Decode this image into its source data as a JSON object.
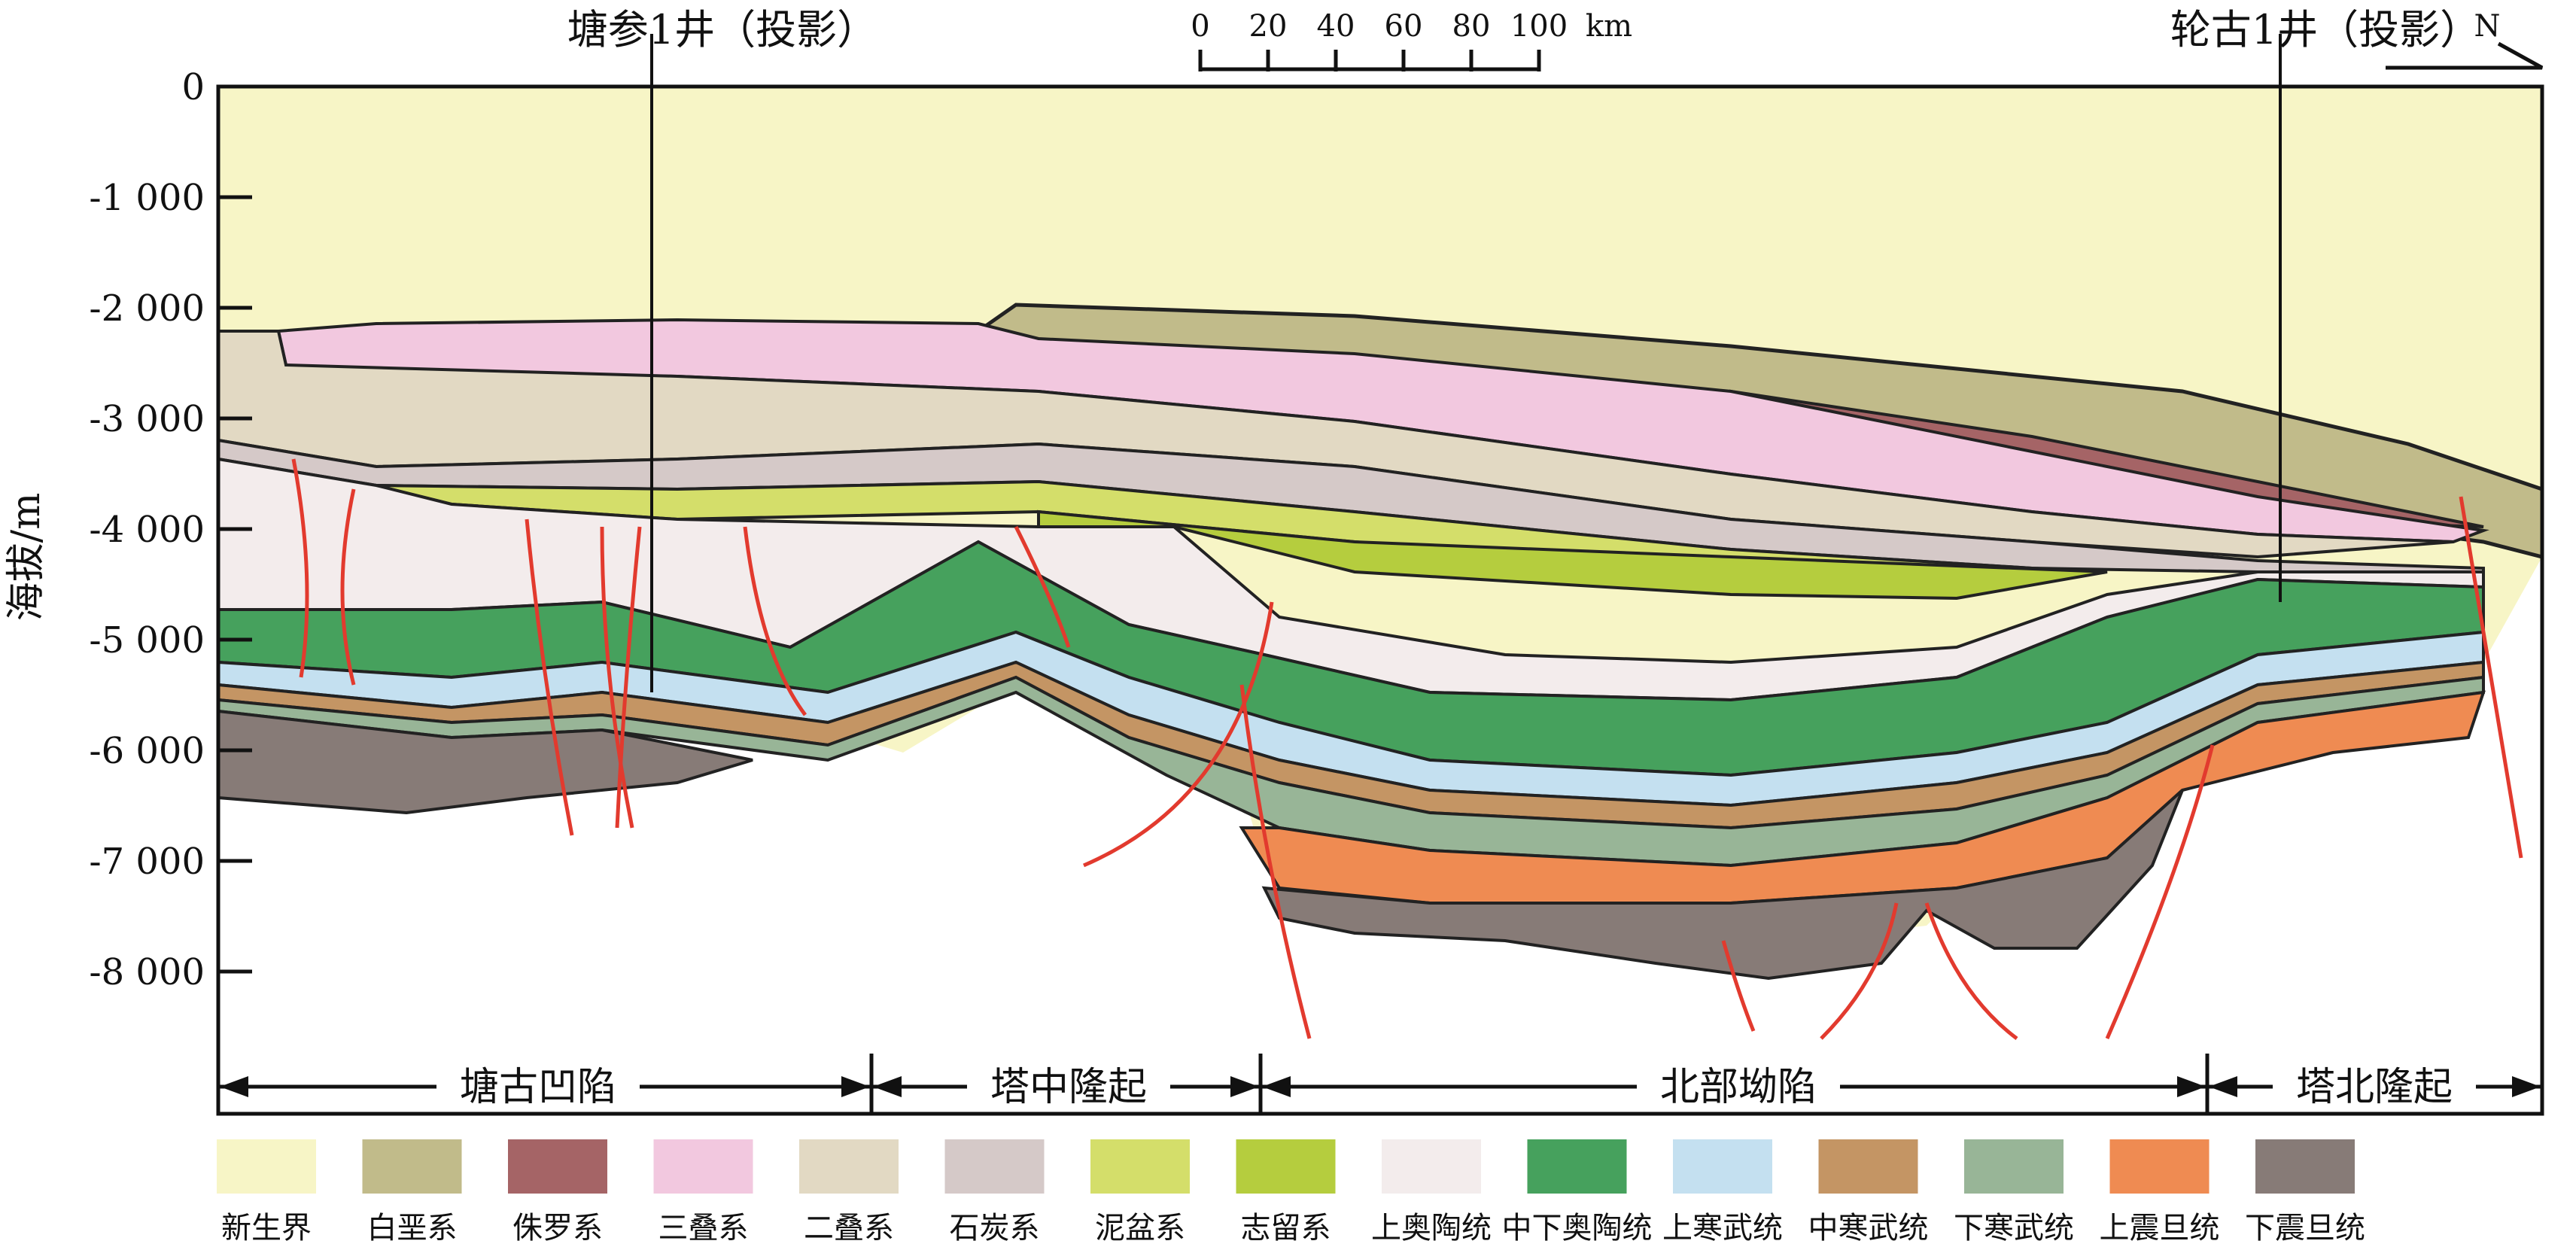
{
  "wells": [
    {
      "name": "塘参1井（投影）"
    },
    {
      "name": "轮古1井（投影）"
    }
  ],
  "north_label": "N",
  "scale_bar": {
    "ticks": [
      "0",
      "20",
      "40",
      "60",
      "80",
      "100"
    ],
    "unit": "km"
  },
  "y_axis": {
    "label": "海拔/m",
    "ticks": [
      "0",
      "-1 000",
      "-2 000",
      "-3 000",
      "-4 000",
      "-5 000",
      "-6 000",
      "-7 000",
      "-8 000"
    ]
  },
  "regions": [
    {
      "name": "塘古凹陷"
    },
    {
      "name": "塔中隆起"
    },
    {
      "name": "北部坳陷"
    },
    {
      "name": "塔北隆起"
    }
  ],
  "legend": [
    {
      "label": "新生界",
      "color": "#f7f5c6"
    },
    {
      "label": "白垩系",
      "color": "#c1bb8a"
    },
    {
      "label": "侏罗系",
      "color": "#a56466"
    },
    {
      "label": "三叠系",
      "color": "#f2c8df"
    },
    {
      "label": "二叠系",
      "color": "#e2d9c3"
    },
    {
      "label": "石炭系",
      "color": "#d5c9c8"
    },
    {
      "label": "泥盆系",
      "color": "#d4de6a"
    },
    {
      "label": "志留系",
      "color": "#b5cd3e"
    },
    {
      "label": "上奥陶统",
      "color": "#f3ecec"
    },
    {
      "label": "中下奥陶统",
      "color": "#46a15d"
    },
    {
      "label": "上寒武统",
      "color": "#c4e0f0"
    },
    {
      "label": "中寒武统",
      "color": "#c49564"
    },
    {
      "label": "下寒武统",
      "color": "#98b597"
    },
    {
      "label": "上震旦统",
      "color": "#ef8b52"
    },
    {
      "label": "下震旦统",
      "color": "#877b77"
    }
  ]
}
